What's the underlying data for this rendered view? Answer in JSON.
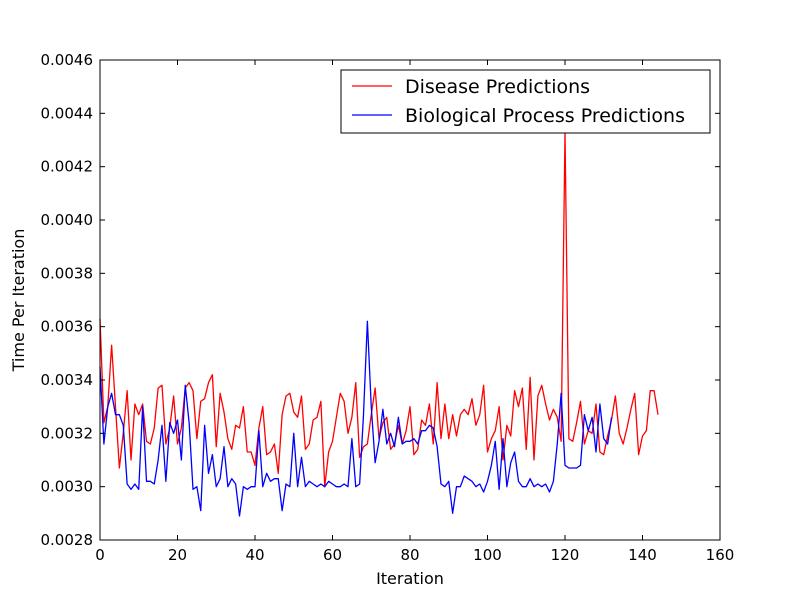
{
  "chart_data": {
    "type": "line",
    "title": "",
    "xlabel": "Iteration",
    "ylabel": "Time Per Iteration",
    "xlim": [
      0,
      160
    ],
    "ylim": [
      0.0028,
      0.0046
    ],
    "xticks": [
      0,
      20,
      40,
      60,
      80,
      100,
      120,
      140,
      160
    ],
    "yticks": [
      0.0028,
      0.003,
      0.0032,
      0.0034,
      0.0036,
      0.0038,
      0.004,
      0.0042,
      0.0044,
      0.0046
    ],
    "xtick_labels": [
      "0",
      "20",
      "40",
      "60",
      "80",
      "100",
      "120",
      "140",
      "160"
    ],
    "ytick_labels": [
      "0.0028",
      "0.0030",
      "0.0032",
      "0.0034",
      "0.0036",
      "0.0038",
      "0.0040",
      "0.0042",
      "0.0044",
      "0.0046"
    ],
    "grid": false,
    "legend_position": "top-right",
    "series": [
      {
        "name": "Disease Predictions",
        "color": "#ff0000",
        "x_start": 0,
        "values": [
          0.00363,
          0.00324,
          0.0033,
          0.00353,
          0.0033,
          0.00307,
          0.0032,
          0.00336,
          0.0031,
          0.00331,
          0.00327,
          0.00331,
          0.00317,
          0.00316,
          0.00322,
          0.00337,
          0.00338,
          0.00316,
          0.00322,
          0.00334,
          0.00316,
          0.00322,
          0.00337,
          0.00339,
          0.00336,
          0.00318,
          0.00332,
          0.00333,
          0.00339,
          0.00342,
          0.00315,
          0.00335,
          0.00328,
          0.00318,
          0.00314,
          0.00323,
          0.00322,
          0.0033,
          0.00313,
          0.00313,
          0.00308,
          0.00322,
          0.0033,
          0.00312,
          0.00313,
          0.00316,
          0.00305,
          0.00327,
          0.00334,
          0.00335,
          0.00328,
          0.00326,
          0.00334,
          0.00314,
          0.00316,
          0.00325,
          0.00326,
          0.00332,
          0.003,
          0.00313,
          0.00317,
          0.00326,
          0.00335,
          0.00332,
          0.0032,
          0.00326,
          0.00339,
          0.00311,
          0.00315,
          0.00316,
          0.00327,
          0.00337,
          0.00318,
          0.00324,
          0.00326,
          0.00314,
          0.00316,
          0.00323,
          0.00316,
          0.00321,
          0.0033,
          0.00312,
          0.00314,
          0.00325,
          0.00323,
          0.00331,
          0.00316,
          0.00339,
          0.00318,
          0.00331,
          0.00318,
          0.00327,
          0.00319,
          0.00327,
          0.00329,
          0.00327,
          0.00333,
          0.00323,
          0.00327,
          0.00338,
          0.00313,
          0.00318,
          0.00321,
          0.0033,
          0.0031,
          0.00323,
          0.00319,
          0.00336,
          0.0033,
          0.00337,
          0.00314,
          0.00341,
          0.0031,
          0.00334,
          0.00338,
          0.00331,
          0.00325,
          0.00329,
          0.00326,
          0.00317,
          0.00433,
          0.00318,
          0.00317,
          0.00324,
          0.00332,
          0.00316,
          0.00321,
          0.0032,
          0.00331,
          0.00313,
          0.00312,
          0.00319,
          0.00325,
          0.00334,
          0.0032,
          0.00316,
          0.00322,
          0.00329,
          0.00335,
          0.00312,
          0.00319,
          0.00321,
          0.00336,
          0.00336,
          0.00327
        ]
      },
      {
        "name": "Biological Process Predictions",
        "color": "#0000ff",
        "x_start": 0,
        "values": [
          0.00345,
          0.00316,
          0.0033,
          0.00335,
          0.00327,
          0.00327,
          0.00323,
          0.00301,
          0.00299,
          0.00301,
          0.00299,
          0.0033,
          0.00302,
          0.00302,
          0.00301,
          0.0031,
          0.00323,
          0.00302,
          0.00324,
          0.0032,
          0.00325,
          0.0031,
          0.00338,
          0.00324,
          0.00299,
          0.003,
          0.00291,
          0.00323,
          0.00305,
          0.00312,
          0.003,
          0.00303,
          0.00315,
          0.003,
          0.00303,
          0.00301,
          0.00289,
          0.003,
          0.00299,
          0.003,
          0.003,
          0.00321,
          0.003,
          0.00305,
          0.00302,
          0.00303,
          0.00303,
          0.00291,
          0.00301,
          0.003,
          0.0032,
          0.003,
          0.00311,
          0.003,
          0.00302,
          0.00301,
          0.003,
          0.00301,
          0.003,
          0.00302,
          0.00301,
          0.003,
          0.003,
          0.00301,
          0.003,
          0.00318,
          0.003,
          0.00301,
          0.00327,
          0.00362,
          0.0033,
          0.00309,
          0.00317,
          0.00329,
          0.00316,
          0.0032,
          0.00315,
          0.00326,
          0.00316,
          0.00317,
          0.00317,
          0.00318,
          0.00316,
          0.00321,
          0.00321,
          0.00323,
          0.00322,
          0.00315,
          0.00301,
          0.003,
          0.00302,
          0.0029,
          0.003,
          0.003,
          0.00304,
          0.00303,
          0.00302,
          0.003,
          0.00301,
          0.00298,
          0.00302,
          0.00308,
          0.00317,
          0.00299,
          0.00318,
          0.003,
          0.00309,
          0.00313,
          0.00302,
          0.003,
          0.003,
          0.00303,
          0.003,
          0.00301,
          0.003,
          0.00301,
          0.00298,
          0.00302,
          0.00316,
          0.00335,
          0.00308,
          0.00307,
          0.00307,
          0.00307,
          0.00308,
          0.00327,
          0.00321,
          0.00326,
          0.00313,
          0.00331,
          0.00318,
          0.00316,
          0.00326
        ]
      }
    ]
  }
}
